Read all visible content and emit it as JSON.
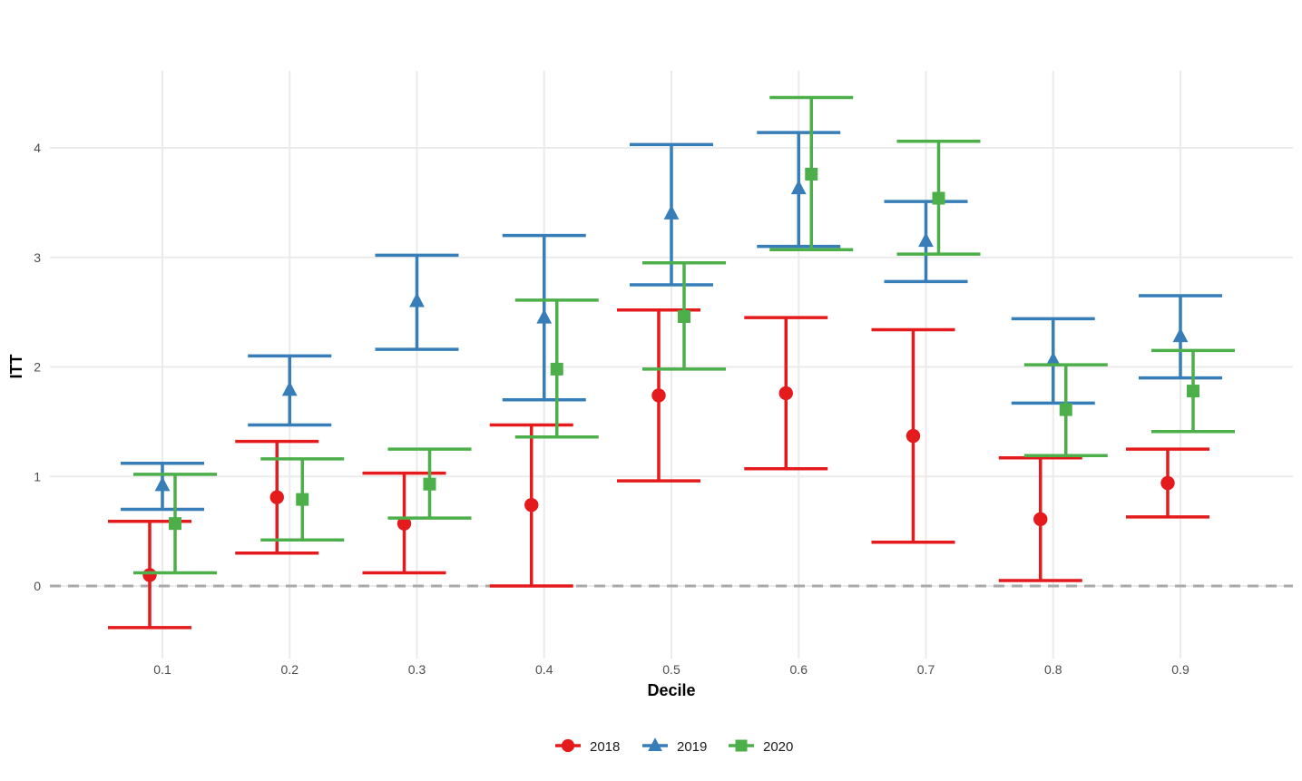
{
  "chart_data": {
    "type": "scatter",
    "subtype": "point-with-errorbars",
    "xlabel": "Decile",
    "ylabel": "ITT",
    "categories": [
      "0.1",
      "0.2",
      "0.3",
      "0.4",
      "0.5",
      "0.6",
      "0.7",
      "0.8",
      "0.9"
    ],
    "ylim": [
      -0.6,
      4.7
    ],
    "yticks": [
      "0",
      "1",
      "2",
      "3",
      "4"
    ],
    "reference_line": {
      "y": 0,
      "style": "dashed",
      "color": "#aaaaaa"
    },
    "grid": true,
    "legend_position": "bottom",
    "series": [
      {
        "name": "2018",
        "color": "#e41a1c",
        "marker": "circle",
        "estimate": [
          0.1,
          0.81,
          0.57,
          0.74,
          1.74,
          1.76,
          1.37,
          0.61,
          0.94
        ],
        "lower": [
          -0.38,
          0.3,
          0.12,
          0.0,
          0.96,
          1.07,
          0.4,
          0.05,
          0.63
        ],
        "upper": [
          0.59,
          1.32,
          1.03,
          1.47,
          2.52,
          2.45,
          2.34,
          1.17,
          1.25
        ]
      },
      {
        "name": "2019",
        "color": "#377eb8",
        "marker": "triangle",
        "estimate": [
          0.92,
          1.79,
          2.6,
          2.45,
          3.4,
          3.63,
          3.15,
          2.06,
          2.28
        ],
        "lower": [
          0.7,
          1.47,
          2.16,
          1.7,
          2.75,
          3.1,
          2.78,
          1.67,
          1.9
        ],
        "upper": [
          1.12,
          2.1,
          3.02,
          3.2,
          4.03,
          4.14,
          3.51,
          2.44,
          2.65
        ]
      },
      {
        "name": "2020",
        "color": "#4daf4a",
        "marker": "square",
        "estimate": [
          0.57,
          0.79,
          0.93,
          1.98,
          2.46,
          3.76,
          3.54,
          1.61,
          1.78
        ],
        "lower": [
          0.12,
          0.42,
          0.62,
          1.36,
          1.98,
          3.07,
          3.03,
          1.19,
          1.41
        ],
        "upper": [
          1.02,
          1.16,
          1.25,
          2.61,
          2.95,
          4.46,
          4.06,
          2.02,
          2.15
        ]
      }
    ]
  }
}
